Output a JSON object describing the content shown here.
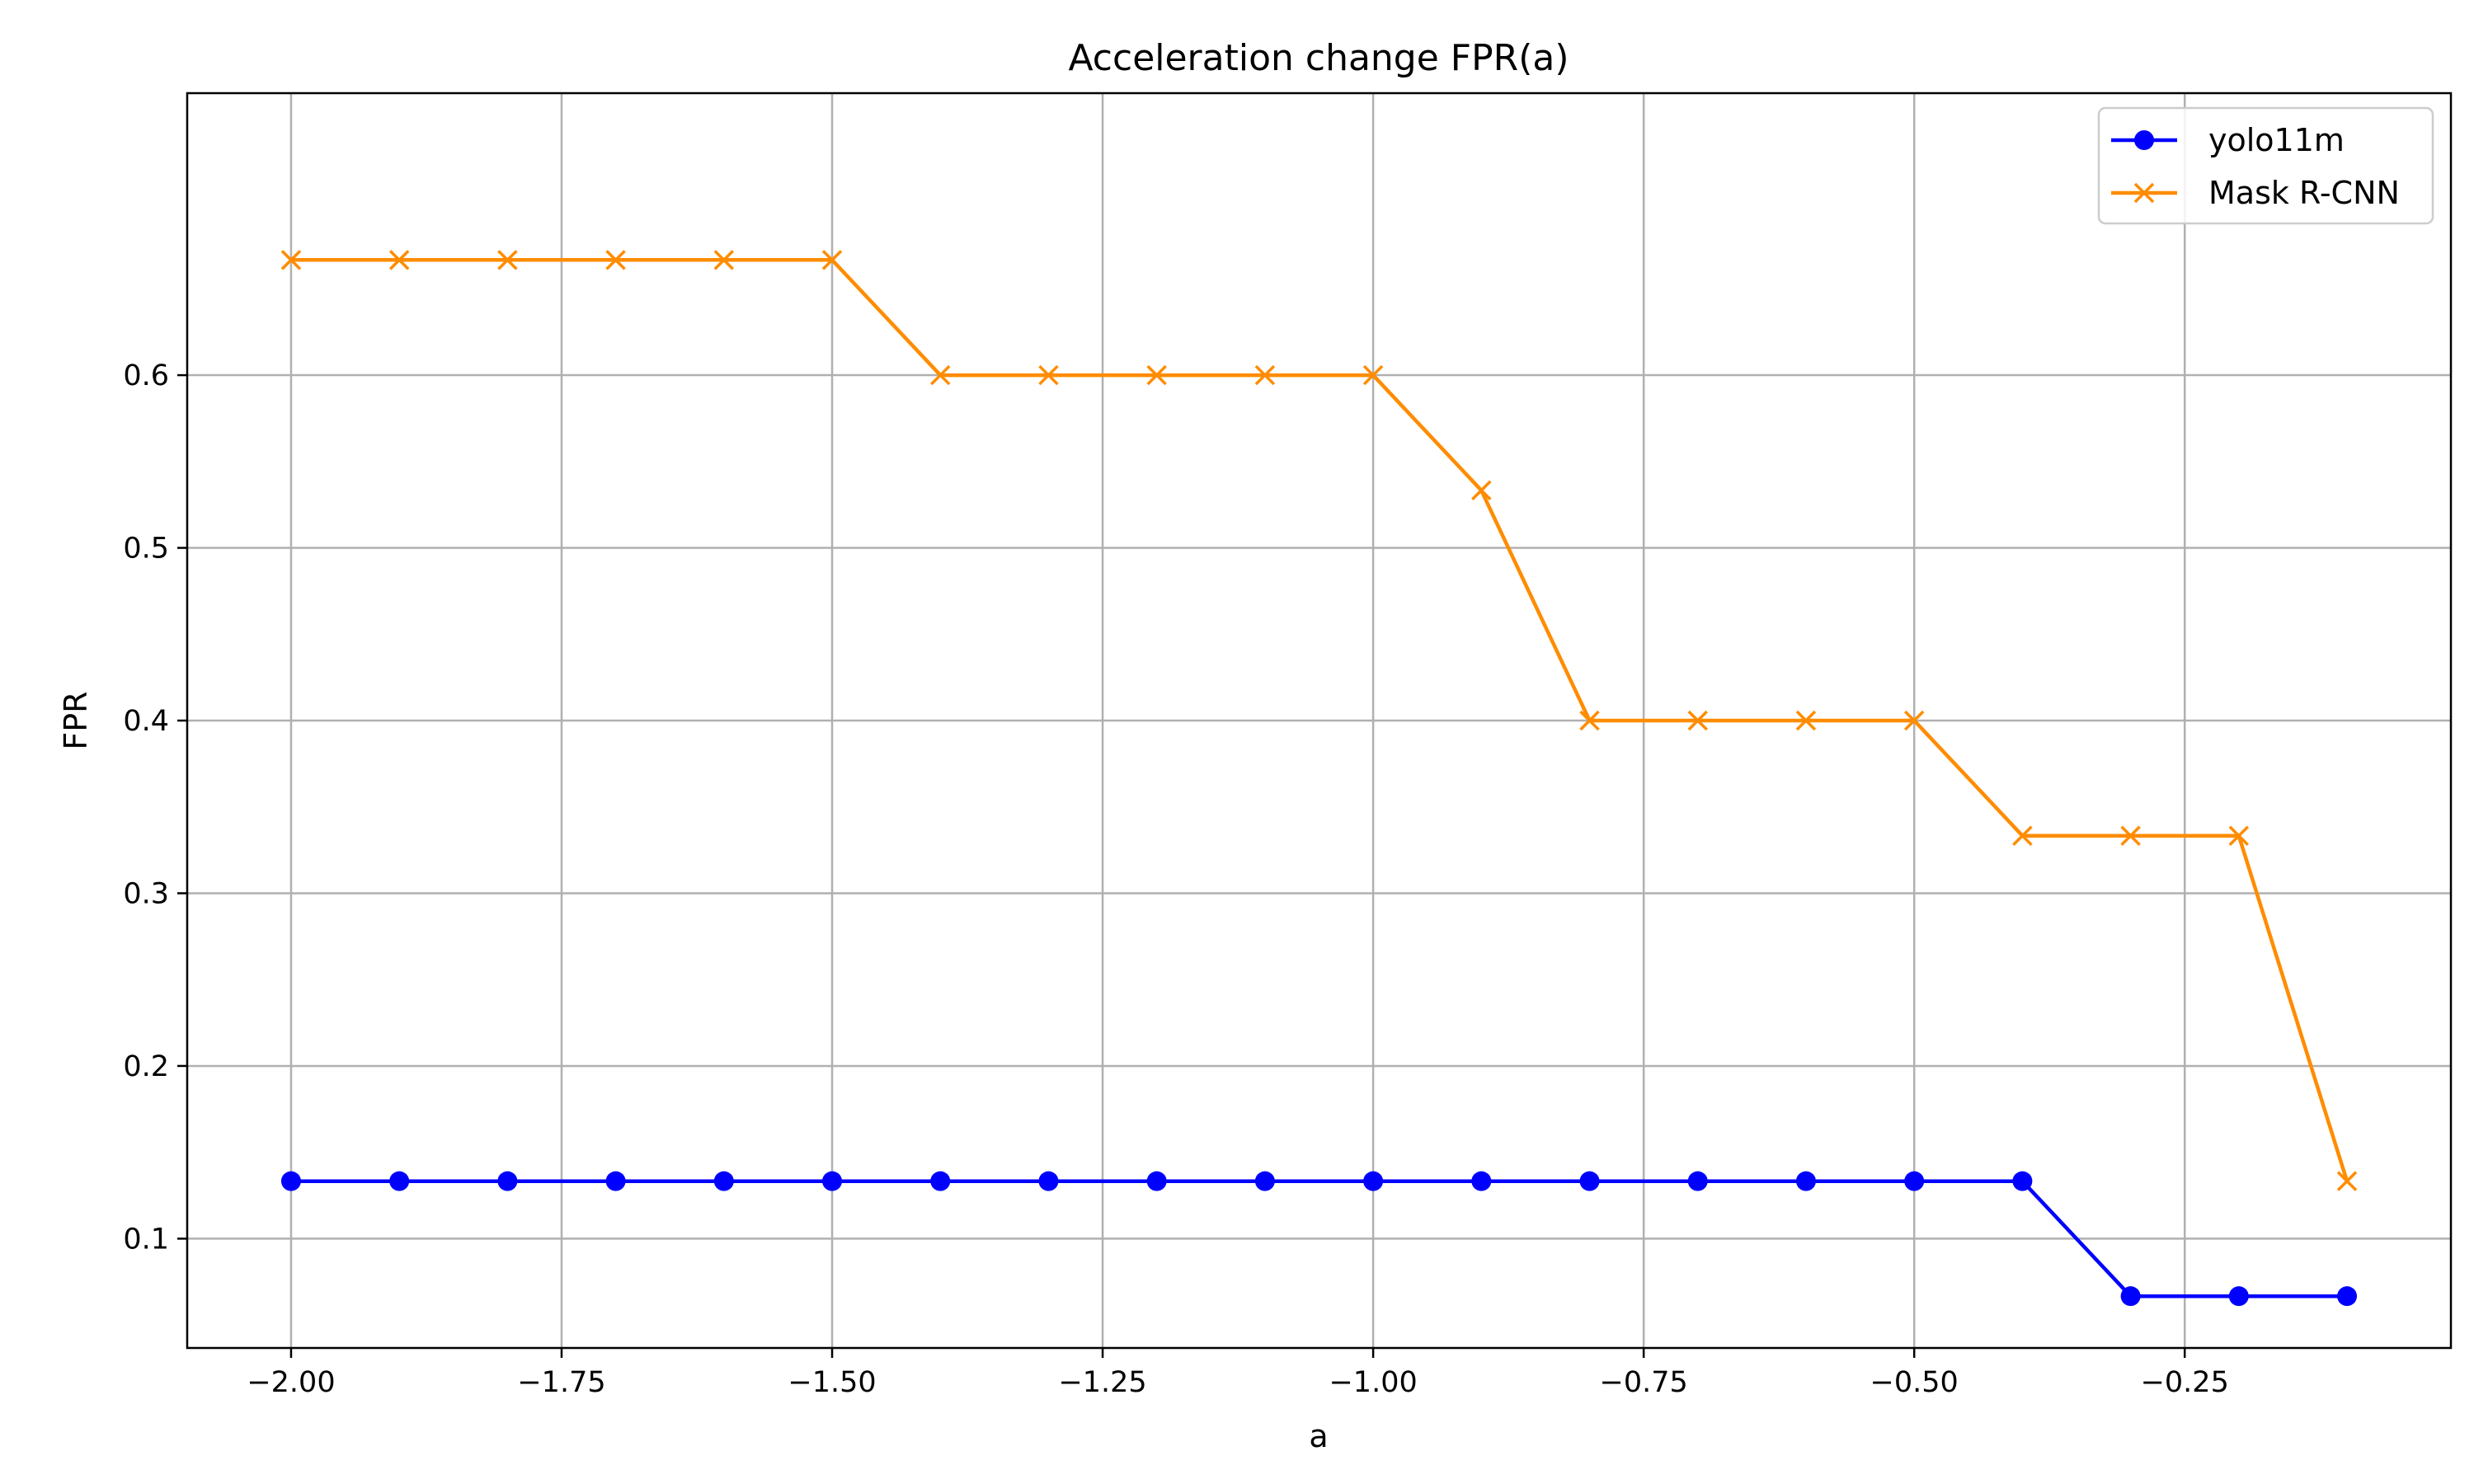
{
  "chart_data": {
    "type": "line",
    "title": "Acceleration change FPR(a)",
    "xlabel": "a",
    "ylabel": "FPR",
    "x": [
      -2.0,
      -1.9,
      -1.8,
      -1.7,
      -1.6,
      -1.5,
      -1.4,
      -1.3,
      -1.2,
      -1.1,
      -1.0,
      -0.9,
      -0.8,
      -0.7,
      -0.6,
      -0.5,
      -0.4,
      -0.3,
      -0.2,
      -0.1
    ],
    "xlim": [
      -2.096,
      -0.004
    ],
    "ylim": [
      0.0367,
      0.7633
    ],
    "xticks": [
      -2.0,
      -1.75,
      -1.5,
      -1.25,
      -1.0,
      -0.75,
      -0.5,
      -0.25
    ],
    "xtick_labels": [
      "−2.00",
      "−1.75",
      "−1.50",
      "−1.25",
      "−1.00",
      "−0.75",
      "−0.50",
      "−0.25"
    ],
    "yticks": [
      0.1,
      0.2,
      0.3,
      0.4,
      0.5,
      0.6
    ],
    "ytick_labels": [
      "0.1",
      "0.2",
      "0.3",
      "0.4",
      "0.5",
      "0.6"
    ],
    "grid": true,
    "legend_position": "top-right",
    "series": [
      {
        "name": "yolo11m",
        "color": "#0000ff",
        "marker": "circle",
        "values": [
          0.1333,
          0.1333,
          0.1333,
          0.1333,
          0.1333,
          0.1333,
          0.1333,
          0.1333,
          0.1333,
          0.1333,
          0.1333,
          0.1333,
          0.1333,
          0.1333,
          0.1333,
          0.1333,
          0.1333,
          0.0667,
          0.0667,
          0.0667
        ]
      },
      {
        "name": "Mask R-CNN",
        "color": "#ff8c00",
        "marker": "x",
        "values": [
          0.6667,
          0.6667,
          0.6667,
          0.6667,
          0.6667,
          0.6667,
          0.6,
          0.6,
          0.6,
          0.6,
          0.6,
          0.5333,
          0.4,
          0.4,
          0.4,
          0.4,
          0.3333,
          0.3333,
          0.3333,
          0.1333
        ]
      }
    ]
  }
}
